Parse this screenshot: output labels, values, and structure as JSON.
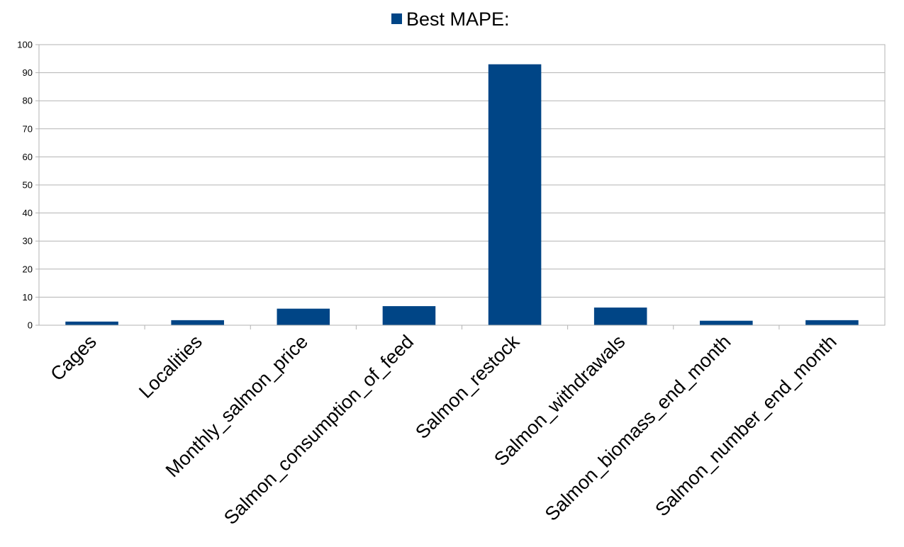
{
  "chart_data": {
    "type": "bar",
    "categories": [
      "Cages",
      "Localities",
      "Monthly_salmon_price",
      "Salmon_consumption_of_feed",
      "Salmon_restock",
      "Salmon_withdrawals",
      "Salmon_biomass_end_month",
      "Salmon_number_end_month"
    ],
    "series": [
      {
        "name": "Best MAPE:",
        "values": [
          1.3,
          1.8,
          5.9,
          6.8,
          93.0,
          6.3,
          1.6,
          1.8
        ],
        "color": "#004586"
      }
    ],
    "ylim": [
      0,
      100
    ],
    "yticks": [
      0,
      10,
      20,
      30,
      40,
      50,
      60,
      70,
      80,
      90,
      100
    ],
    "grid": true,
    "legend": "top-center"
  }
}
